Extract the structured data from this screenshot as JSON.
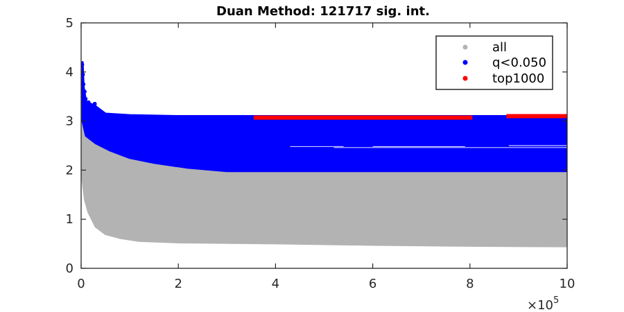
{
  "chart_data": {
    "type": "scatter",
    "title": "Duan Method: 121717 sig. int.",
    "xlabel": "",
    "ylabel": "",
    "xlim": [
      0,
      1000000
    ],
    "ylim": [
      0,
      5
    ],
    "x_ticks": [
      0,
      200000,
      400000,
      600000,
      800000,
      1000000
    ],
    "x_tick_labels": [
      "0",
      "2",
      "4",
      "6",
      "8",
      "10"
    ],
    "x_exponent_label": "×10",
    "x_exponent_power": "5",
    "y_ticks": [
      0,
      1,
      2,
      3,
      4,
      5
    ],
    "y_tick_labels": [
      "0",
      "1",
      "2",
      "3",
      "4",
      "5"
    ],
    "grid": false,
    "legend_position": "top-right",
    "series": [
      {
        "name": "all",
        "color": "#b3b3b3",
        "render": "band",
        "band_upper": [
          [
            0,
            4.2
          ],
          [
            2000,
            3.7
          ],
          [
            8000,
            3.3
          ],
          [
            20000,
            2.9
          ],
          [
            40000,
            2.6
          ],
          [
            70000,
            2.45
          ],
          [
            100000,
            2.3
          ],
          [
            160000,
            2.2
          ],
          [
            220000,
            2.05
          ],
          [
            300000,
            1.98
          ],
          [
            1000000,
            1.98
          ]
        ],
        "band_lower": [
          [
            0,
            2.2
          ],
          [
            3000,
            1.8
          ],
          [
            8000,
            1.4
          ],
          [
            15000,
            1.15
          ],
          [
            30000,
            0.85
          ],
          [
            50000,
            0.7
          ],
          [
            80000,
            0.62
          ],
          [
            120000,
            0.56
          ],
          [
            200000,
            0.53
          ],
          [
            400000,
            0.51
          ],
          [
            600000,
            0.48
          ],
          [
            800000,
            0.46
          ],
          [
            1000000,
            0.45
          ]
        ]
      },
      {
        "name": "q<0.050",
        "color": "#0000ff",
        "render": "band",
        "band_upper": [
          [
            3000,
            4.2
          ],
          [
            5000,
            3.7
          ],
          [
            10000,
            3.4
          ],
          [
            30000,
            3.3
          ],
          [
            50000,
            3.15
          ],
          [
            100000,
            3.12
          ],
          [
            200000,
            3.1
          ],
          [
            1000000,
            3.1
          ]
        ],
        "band_lower": [
          [
            3000,
            3.0
          ],
          [
            10000,
            2.7
          ],
          [
            30000,
            2.55
          ],
          [
            60000,
            2.4
          ],
          [
            100000,
            2.25
          ],
          [
            150000,
            2.15
          ],
          [
            220000,
            2.05
          ],
          [
            300000,
            1.98
          ],
          [
            1000000,
            1.98
          ]
        ]
      },
      {
        "name": "top1000",
        "color": "#ff0000",
        "render": "line",
        "segments": [
          {
            "x": [
              355000,
              805000
            ],
            "y": 3.07
          },
          {
            "x": [
              875000,
              1000000
            ],
            "y": 3.1
          }
        ]
      }
    ]
  }
}
